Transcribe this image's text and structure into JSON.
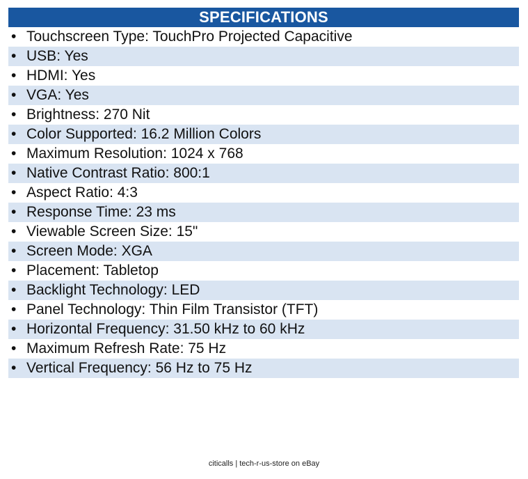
{
  "specs": {
    "title": "SPECIFICATIONS",
    "bullet": "•",
    "items": [
      {
        "label": "Touchscreen Type",
        "value": "TouchPro Projected Capacitive"
      },
      {
        "label": "USB",
        "value": "Yes"
      },
      {
        "label": "HDMI",
        "value": "Yes"
      },
      {
        "label": "VGA",
        "value": "Yes"
      },
      {
        "label": "Brightness",
        "value": "270 Nit"
      },
      {
        "label": "Color Supported",
        "value": "16.2 Million Colors"
      },
      {
        "label": "Maximum Resolution",
        "value": "1024 x 768"
      },
      {
        "label": "Native Contrast Ratio",
        "value": "800:1"
      },
      {
        "label": "Aspect Ratio",
        "value": "4:3"
      },
      {
        "label": "Response Time",
        "value": "23 ms"
      },
      {
        "label": "Viewable Screen Size",
        "value": "15\""
      },
      {
        "label": "Screen Mode",
        "value": "XGA"
      },
      {
        "label": "Placement",
        "value": "Tabletop"
      },
      {
        "label": "Backlight Technology",
        "value": "LED"
      },
      {
        "label": "Panel Technology",
        "value": "Thin Film Transistor (TFT)"
      },
      {
        "label": "Horizontal Frequency",
        "value": "31.50 kHz to 60 kHz"
      },
      {
        "label": "Maximum Refresh Rate",
        "value": "75 Hz"
      },
      {
        "label": "Vertical Frequency",
        "value": "56 Hz to 75 Hz"
      }
    ]
  },
  "colors": {
    "header_bg": "#1957a0",
    "header_text": "#ffffff",
    "stripe": "#d9e4f2"
  },
  "footer": {
    "text": "citicalls | tech-r-us-store on eBay"
  }
}
